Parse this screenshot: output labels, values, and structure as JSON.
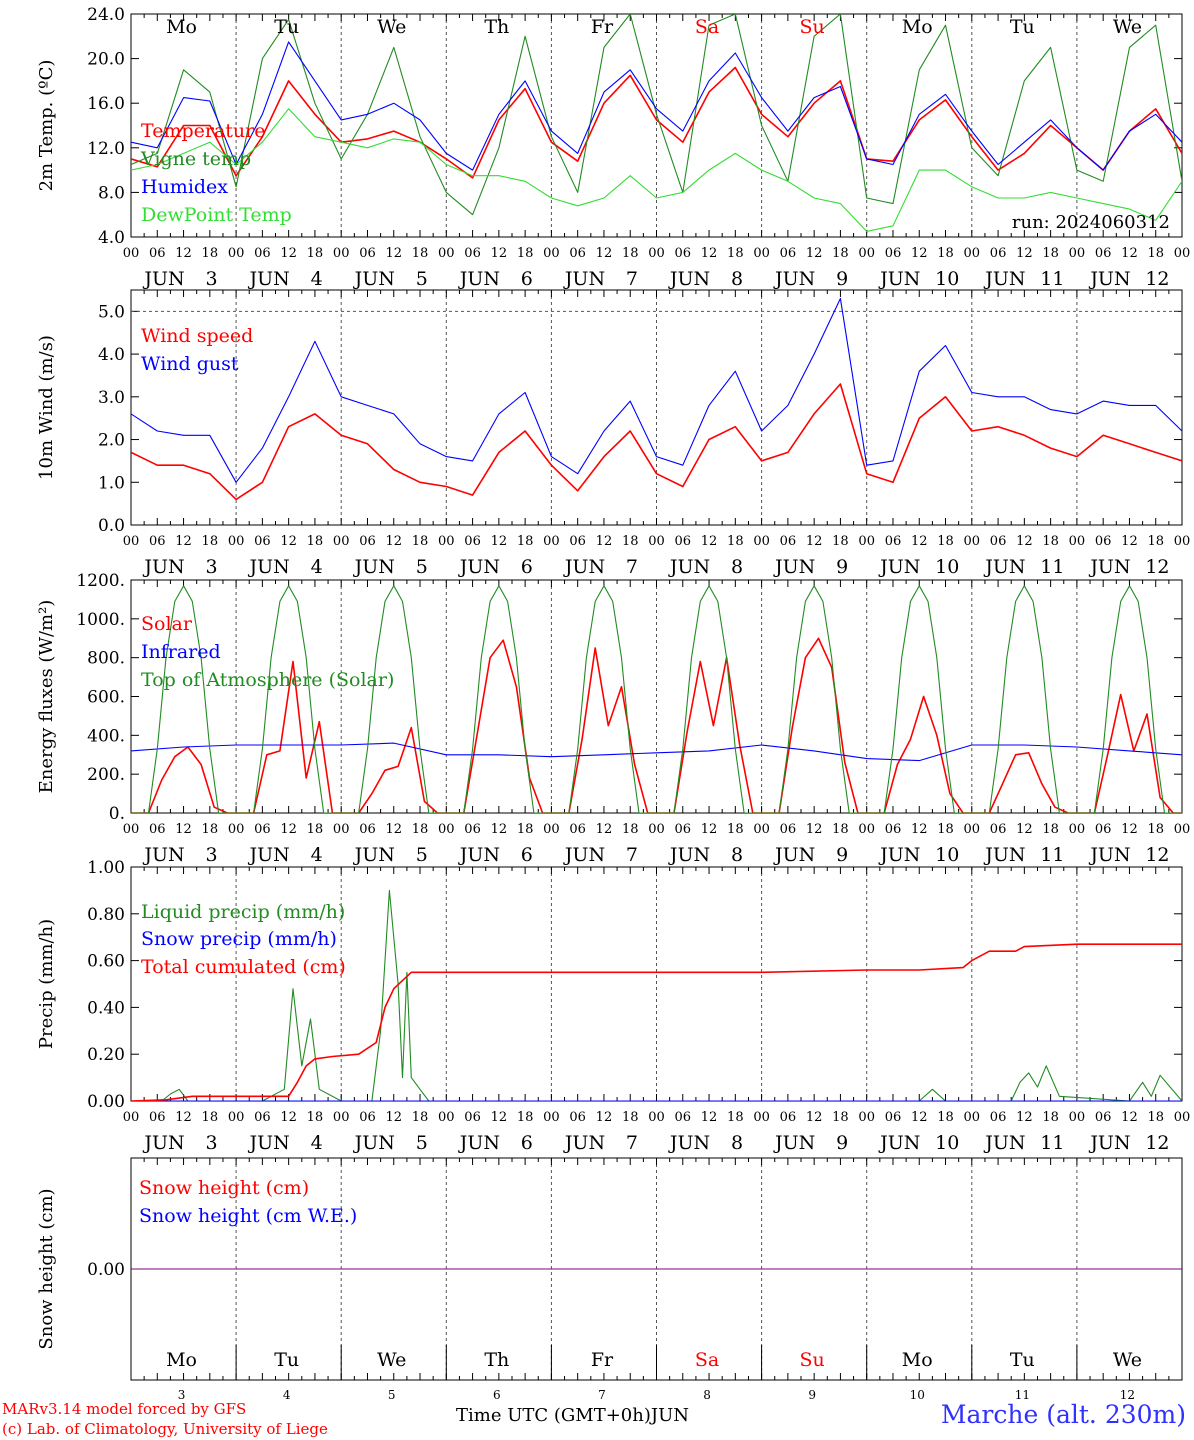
{
  "days": [
    "3",
    "4",
    "5",
    "6",
    "7",
    "8",
    "9",
    "10",
    "11",
    "12"
  ],
  "weekdays": [
    "Mo",
    "Tu",
    "We",
    "Th",
    "Fr",
    "Sa",
    "Su",
    "Mo",
    "Tu",
    "We"
  ],
  "weekend_days": [
    5,
    6
  ],
  "month": "JUN",
  "hour_ticks": [
    "00",
    "06",
    "12",
    "18"
  ],
  "colors": {
    "red": "#ff0000",
    "green": "#228b22",
    "blue": "#0000ff",
    "light_green": "#33dd33",
    "purple": "#800080",
    "weekend": "#ff0000"
  },
  "run_label": "run: 2024060312",
  "footer": {
    "credit1": "MARv3.14 model forced by GFS",
    "credit2": "(c) Lab. of Climatology, University of Liege",
    "xaxis_title": "Time UTC (GMT+0h)",
    "xaxis_month": "JUN",
    "station": "Marche (alt. 230m)"
  },
  "chart_data": [
    {
      "type": "line",
      "ylabel": "2m Temp. (ºC)",
      "ylim": [
        4,
        24
      ],
      "yticks": [
        "4.0",
        "8.0",
        "12.0",
        "16.0",
        "20.0",
        "24.0"
      ],
      "x_unit": "hours since JUN 3 00 UTC",
      "legend": [
        "Temperature",
        "Vigne temp",
        "Humidex",
        "DewPoint Temp"
      ],
      "series": [
        {
          "name": "Temperature",
          "color": "red",
          "x": [
            0,
            6,
            12,
            18,
            24,
            30,
            36,
            42,
            48,
            54,
            60,
            66,
            72,
            78,
            84,
            90,
            96,
            102,
            108,
            114,
            120,
            126,
            132,
            138,
            144,
            150,
            156,
            162,
            168,
            174,
            180,
            186,
            192,
            198,
            204,
            210,
            216,
            222,
            228,
            234,
            240
          ],
          "values": [
            11.0,
            10.3,
            14.0,
            14.0,
            9.5,
            13.0,
            18.0,
            15.0,
            12.5,
            12.8,
            13.5,
            12.5,
            11.0,
            9.3,
            14.5,
            17.3,
            12.5,
            10.8,
            16.0,
            18.5,
            14.5,
            12.5,
            17.0,
            19.2,
            15.0,
            13.0,
            16.0,
            18.0,
            11.0,
            10.8,
            14.5,
            16.3,
            13.0,
            10.0,
            11.5,
            14.0,
            12.0,
            10.0,
            13.5,
            15.5,
            11.5
          ]
        },
        {
          "name": "Vigne temp",
          "color": "green",
          "x": [
            0,
            6,
            12,
            18,
            24,
            30,
            36,
            42,
            48,
            54,
            60,
            66,
            72,
            78,
            84,
            90,
            96,
            102,
            108,
            114,
            120,
            126,
            132,
            138,
            144,
            150,
            156,
            162,
            168,
            174,
            180,
            186,
            192,
            198,
            204,
            210,
            216,
            222,
            228,
            234,
            240
          ],
          "values": [
            10.5,
            11.5,
            19.0,
            17.0,
            8.5,
            20.0,
            23.5,
            16.0,
            11.0,
            15.0,
            21.0,
            13.0,
            8.0,
            6.0,
            12.0,
            22.0,
            13.0,
            8.0,
            21.0,
            24.0,
            15.0,
            8.0,
            23.0,
            24.0,
            14.0,
            9.0,
            22.0,
            24.0,
            7.5,
            7.0,
            19.0,
            23.0,
            12.0,
            9.5,
            18.0,
            21.0,
            10.0,
            9.0,
            21.0,
            23.0,
            9.0
          ]
        },
        {
          "name": "Humidex",
          "color": "blue",
          "x": [
            0,
            6,
            12,
            18,
            24,
            30,
            36,
            42,
            48,
            54,
            60,
            66,
            72,
            78,
            84,
            90,
            96,
            102,
            108,
            114,
            120,
            126,
            132,
            138,
            144,
            150,
            156,
            162,
            168,
            174,
            180,
            186,
            192,
            198,
            204,
            210,
            216,
            222,
            228,
            234,
            240
          ],
          "values": [
            12.5,
            12.0,
            16.5,
            16.2,
            10.5,
            15.0,
            21.5,
            18.0,
            14.5,
            15.0,
            16.0,
            14.5,
            11.5,
            10.0,
            15.0,
            18.0,
            13.5,
            11.5,
            17.0,
            19.0,
            15.5,
            13.5,
            18.0,
            20.5,
            16.5,
            13.5,
            16.5,
            17.5,
            11.0,
            10.5,
            15.0,
            16.8,
            13.5,
            10.5,
            12.5,
            14.5,
            12.0,
            10.0,
            13.5,
            15.0,
            12.5
          ]
        },
        {
          "name": "DewPoint Temp",
          "color": "light_green",
          "x": [
            0,
            6,
            12,
            18,
            24,
            30,
            36,
            42,
            48,
            54,
            60,
            66,
            72,
            78,
            84,
            90,
            96,
            102,
            108,
            114,
            120,
            126,
            132,
            138,
            144,
            150,
            156,
            162,
            168,
            174,
            180,
            186,
            192,
            198,
            204,
            210,
            216,
            222,
            228,
            234,
            240
          ],
          "values": [
            10.0,
            10.5,
            11.5,
            12.5,
            10.5,
            12.5,
            15.5,
            13.0,
            12.5,
            12.0,
            12.8,
            12.5,
            10.5,
            9.5,
            9.5,
            9.0,
            7.5,
            6.8,
            7.5,
            9.5,
            7.5,
            8.0,
            10.0,
            11.5,
            10.0,
            9.0,
            7.5,
            7.0,
            4.5,
            5.0,
            10.0,
            10.0,
            8.5,
            7.5,
            7.5,
            8.0,
            7.5,
            7.0,
            6.5,
            5.5,
            9.0
          ]
        }
      ]
    },
    {
      "type": "line",
      "ylabel": "10m Wind (m/s)",
      "ylim": [
        0,
        5.5
      ],
      "yticks": [
        "0.0",
        "1.0",
        "2.0",
        "3.0",
        "4.0",
        "5.0"
      ],
      "dashed_y": 5.0,
      "legend": [
        "Wind speed",
        "Wind gust"
      ],
      "series": [
        {
          "name": "Wind speed",
          "color": "red",
          "x": [
            0,
            6,
            12,
            18,
            24,
            30,
            36,
            42,
            48,
            54,
            60,
            66,
            72,
            78,
            84,
            90,
            96,
            102,
            108,
            114,
            120,
            126,
            132,
            138,
            144,
            150,
            156,
            162,
            168,
            174,
            180,
            186,
            192,
            198,
            204,
            210,
            216,
            222,
            228,
            234,
            240
          ],
          "values": [
            1.7,
            1.4,
            1.4,
            1.2,
            0.6,
            1.0,
            2.3,
            2.6,
            2.1,
            1.9,
            1.3,
            1.0,
            0.9,
            0.7,
            1.7,
            2.2,
            1.4,
            0.8,
            1.6,
            2.2,
            1.2,
            0.9,
            2.0,
            2.3,
            1.5,
            1.7,
            2.6,
            3.3,
            1.2,
            1.0,
            2.5,
            3.0,
            2.2,
            2.3,
            2.1,
            1.8,
            1.6,
            2.1,
            1.9,
            1.7,
            1.5
          ]
        },
        {
          "name": "Wind gust",
          "color": "blue",
          "x": [
            0,
            6,
            12,
            18,
            24,
            30,
            36,
            42,
            48,
            54,
            60,
            66,
            72,
            78,
            84,
            90,
            96,
            102,
            108,
            114,
            120,
            126,
            132,
            138,
            144,
            150,
            156,
            162,
            168,
            174,
            180,
            186,
            192,
            198,
            204,
            210,
            216,
            222,
            228,
            234,
            240
          ],
          "values": [
            2.6,
            2.2,
            2.1,
            2.1,
            1.0,
            1.8,
            3.0,
            4.3,
            3.0,
            2.8,
            2.6,
            1.9,
            1.6,
            1.5,
            2.6,
            3.1,
            1.6,
            1.2,
            2.2,
            2.9,
            1.6,
            1.4,
            2.8,
            3.6,
            2.2,
            2.8,
            4.0,
            5.3,
            1.4,
            1.5,
            3.6,
            4.2,
            3.1,
            3.0,
            3.0,
            2.7,
            2.6,
            2.9,
            2.8,
            2.8,
            2.2
          ]
        }
      ]
    },
    {
      "type": "line",
      "ylabel": "Energy fluxes (W/m²)",
      "ylim": [
        0,
        1200
      ],
      "yticks": [
        "0.",
        "200.",
        "400.",
        "600.",
        "800.",
        "1000.",
        "1200."
      ],
      "legend": [
        "Solar",
        "Infrared",
        "Top of Atmosphere (Solar)"
      ],
      "series": [
        {
          "name": "Solar",
          "color": "red",
          "x": [
            0,
            4,
            7,
            10,
            13,
            16,
            19,
            22,
            24,
            28,
            31,
            34,
            37,
            40,
            43,
            46,
            48,
            52,
            55,
            58,
            61,
            64,
            67,
            70,
            72,
            76,
            79,
            82,
            85,
            88,
            91,
            94,
            96,
            100,
            103,
            106,
            109,
            112,
            115,
            118,
            120,
            124,
            127,
            130,
            133,
            136,
            139,
            142,
            144,
            148,
            151,
            154,
            157,
            160,
            163,
            166,
            168,
            172,
            175,
            178,
            181,
            184,
            187,
            190,
            192,
            196,
            199,
            202,
            205,
            208,
            211,
            214,
            216,
            220,
            223,
            226,
            229,
            232,
            235,
            238,
            240
          ],
          "values": [
            0,
            0,
            170,
            290,
            340,
            250,
            30,
            0,
            0,
            0,
            300,
            320,
            780,
            180,
            470,
            0,
            0,
            0,
            100,
            220,
            240,
            440,
            60,
            0,
            0,
            0,
            400,
            800,
            890,
            650,
            180,
            0,
            0,
            0,
            380,
            850,
            450,
            650,
            250,
            0,
            0,
            0,
            420,
            780,
            450,
            800,
            350,
            0,
            0,
            0,
            440,
            800,
            900,
            750,
            260,
            0,
            0,
            0,
            250,
            380,
            600,
            400,
            100,
            0,
            0,
            0,
            150,
            300,
            310,
            150,
            30,
            0,
            0,
            0,
            300,
            610,
            320,
            510,
            80,
            0,
            0
          ]
        },
        {
          "name": "Infrared",
          "color": "blue",
          "x": [
            0,
            12,
            24,
            36,
            48,
            60,
            72,
            84,
            96,
            108,
            120,
            132,
            144,
            156,
            168,
            180,
            192,
            204,
            216,
            228,
            240
          ],
          "values": [
            320,
            340,
            350,
            350,
            350,
            360,
            300,
            300,
            290,
            300,
            310,
            320,
            350,
            320,
            280,
            270,
            350,
            350,
            340,
            320,
            300
          ]
        },
        {
          "name": "Top of Atmosphere (Solar)",
          "color": "green",
          "x": [
            0,
            4,
            6,
            8,
            10,
            12,
            14,
            16,
            18,
            20,
            24
          ],
          "values": [
            0,
            0,
            330,
            800,
            1090,
            1170,
            1090,
            800,
            330,
            0,
            0
          ],
          "repeat_daily": true
        }
      ]
    },
    {
      "type": "line",
      "ylabel": "Precip (mm/h)",
      "ylim": [
        0,
        1.0
      ],
      "yticks": [
        "0.00",
        "0.20",
        "0.40",
        "0.60",
        "0.80",
        "1.00"
      ],
      "legend": [
        "Liquid precip (mm/h)",
        "Snow precip (mm/h)",
        "Total cumulated (cm)"
      ],
      "series": [
        {
          "name": "Liquid precip (mm/h)",
          "color": "green",
          "x": [
            0,
            7,
            9,
            11,
            13,
            16,
            30,
            35,
            37,
            39,
            41,
            43,
            48,
            55,
            57,
            59,
            61,
            62,
            63,
            64,
            66,
            68,
            70,
            168,
            180,
            183,
            186,
            190,
            192,
            201,
            203,
            205,
            207,
            209,
            212,
            228,
            231,
            233,
            235,
            240
          ],
          "values": [
            0,
            0,
            0.03,
            0.05,
            0,
            0,
            0,
            0.05,
            0.48,
            0.15,
            0.35,
            0.05,
            0,
            0,
            0.3,
            0.9,
            0.5,
            0.1,
            0.55,
            0.1,
            0.05,
            0,
            0,
            0,
            0,
            0.05,
            0,
            0,
            0,
            0,
            0.08,
            0.12,
            0.06,
            0.15,
            0.02,
            0,
            0.08,
            0.02,
            0.11,
            0
          ]
        },
        {
          "name": "Snow precip (mm/h)",
          "color": "blue",
          "x": [
            0,
            240
          ],
          "values": [
            0,
            0
          ]
        },
        {
          "name": "Total cumulated (cm)",
          "color": "red",
          "x": [
            0,
            8,
            14,
            30,
            36,
            38,
            40,
            42,
            46,
            52,
            56,
            58,
            60,
            64,
            66,
            72,
            120,
            144,
            168,
            180,
            190,
            192,
            196,
            202,
            204,
            216,
            240
          ],
          "values": [
            0,
            0.005,
            0.02,
            0.02,
            0.02,
            0.08,
            0.15,
            0.18,
            0.19,
            0.2,
            0.25,
            0.4,
            0.48,
            0.55,
            0.55,
            0.55,
            0.55,
            0.55,
            0.56,
            0.56,
            0.57,
            0.6,
            0.64,
            0.64,
            0.66,
            0.67,
            0.67
          ]
        }
      ]
    },
    {
      "type": "line",
      "ylabel": "Snow height (cm)",
      "ylim": [
        -1,
        1
      ],
      "yticks": [
        "0.00"
      ],
      "legend": [
        "Snow height (cm)",
        "Snow height (cm W.E.)"
      ],
      "series": [
        {
          "name": "Snow height (cm)",
          "color": "red",
          "x": [
            0,
            240
          ],
          "values": [
            0,
            0
          ]
        },
        {
          "name": "Snow height (cm W.E.)",
          "color": "blue",
          "x": [
            0,
            240
          ],
          "values": [
            0,
            0
          ]
        }
      ]
    }
  ]
}
